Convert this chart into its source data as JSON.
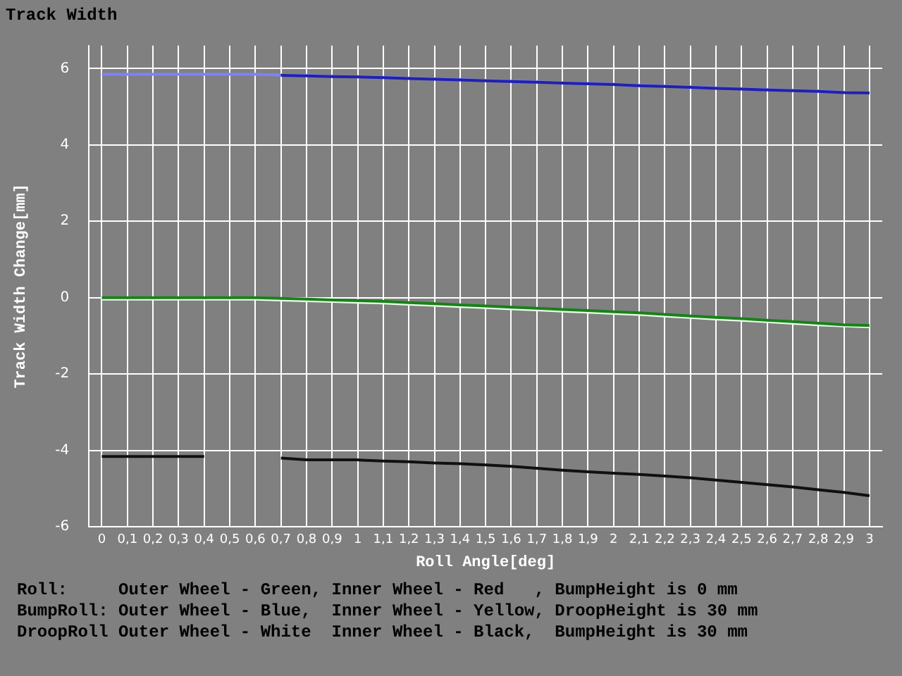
{
  "chart_data": {
    "type": "line",
    "title": "Track Width",
    "xlabel": "Roll Angle[deg]",
    "ylabel": "Track Width Change[mm]",
    "categories": [
      "0",
      "0,1",
      "0,2",
      "0,3",
      "0,4",
      "0,5",
      "0,6",
      "0,7",
      "0,8",
      "0,9",
      "1",
      "1,1",
      "1,2",
      "1,3",
      "1,4",
      "1,5",
      "1,6",
      "1,7",
      "1,8",
      "1,9",
      "2",
      "2,1",
      "2,2",
      "2,3",
      "2,4",
      "2,5",
      "2,6",
      "2,7",
      "2,8",
      "2,9",
      "3"
    ],
    "series": [
      {
        "color": "#2020b0",
        "values": [
          null,
          null,
          null,
          null,
          null,
          null,
          null,
          5.82,
          5.81,
          5.79,
          5.78,
          5.76,
          5.74,
          5.72,
          5.7,
          5.68,
          5.66,
          5.64,
          5.62,
          5.6,
          5.58,
          5.55,
          5.53,
          5.51,
          5.48,
          5.46,
          5.44,
          5.42,
          5.4,
          5.37,
          5.36
        ]
      },
      {
        "color": "#8080ff",
        "values": [
          5.85,
          5.85,
          5.85,
          5.85,
          5.85,
          5.85,
          5.85,
          5.83,
          5.82,
          5.8,
          5.79,
          5.77,
          5.75,
          5.73,
          5.71,
          5.69,
          5.67,
          5.65,
          5.63,
          5.61,
          5.59,
          5.56,
          5.54,
          5.52,
          5.49,
          5.47,
          5.45,
          5.43,
          5.41,
          5.38,
          5.37
        ]
      },
      {
        "color": "#1a801a",
        "values": [
          0,
          0,
          0,
          0,
          0,
          0,
          0,
          -0.02,
          -0.04,
          -0.06,
          -0.08,
          -0.1,
          -0.13,
          -0.16,
          -0.19,
          -0.22,
          -0.25,
          -0.28,
          -0.31,
          -0.34,
          -0.37,
          -0.4,
          -0.44,
          -0.48,
          -0.52,
          -0.55,
          -0.59,
          -0.63,
          -0.67,
          -0.71,
          -0.73
        ]
      },
      {
        "color": "#e8ffe8",
        "values": [
          -0.04,
          -0.04,
          -0.04,
          -0.04,
          -0.04,
          -0.04,
          -0.04,
          -0.06,
          -0.08,
          -0.1,
          -0.12,
          -0.14,
          -0.17,
          -0.2,
          -0.23,
          -0.26,
          -0.29,
          -0.32,
          -0.35,
          -0.38,
          -0.41,
          -0.44,
          -0.48,
          -0.52,
          -0.56,
          -0.59,
          -0.63,
          -0.67,
          -0.71,
          -0.74,
          -0.76
        ]
      },
      {
        "color": "#101010",
        "values": [
          -4.16,
          -4.16,
          -4.16,
          -4.16,
          -4.16,
          null,
          null,
          -4.2,
          -4.25,
          -4.25,
          -4.25,
          -4.28,
          -4.3,
          -4.33,
          -4.35,
          -4.38,
          -4.42,
          -4.47,
          -4.52,
          -4.56,
          -4.6,
          -4.63,
          -4.67,
          -4.72,
          -4.78,
          -4.84,
          -4.9,
          -4.96,
          -5.03,
          -5.1,
          -5.19
        ]
      }
    ],
    "ylim": [
      -6,
      6.6
    ],
    "yticks": [
      -6,
      -4,
      -2,
      0,
      2,
      4,
      6
    ],
    "grid": true,
    "legend": false,
    "marker": "none",
    "line_style": "solid",
    "annotations": [
      "Roll:     Outer Wheel - Green, Inner Wheel - Red   , BumpHeight is 0 mm",
      "BumpRoll: Outer Wheel - Blue,  Inner Wheel - Yellow, DroopHeight is 30 mm",
      "DroopRoll Outer Wheel - White  Inner Wheel - Black,  BumpHeight is 30 mm"
    ]
  }
}
